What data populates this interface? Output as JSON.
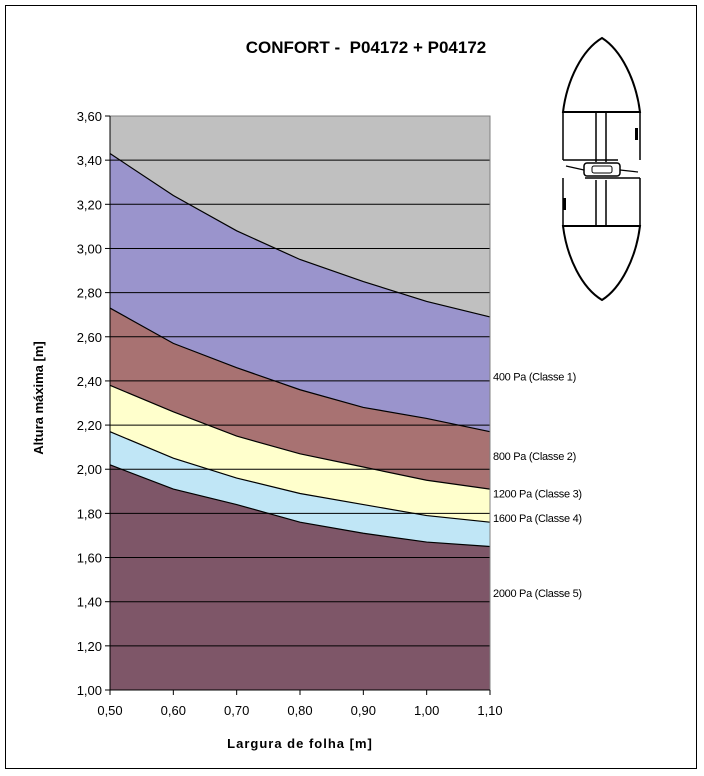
{
  "chart_data": {
    "type": "area",
    "title": "CONFORT -  P04172 + P04172",
    "xlabel": "Largura de folha [m]",
    "ylabel": "Altura máxima [m]",
    "x": [
      0.5,
      0.6,
      0.7,
      0.8,
      0.9,
      1.0,
      1.1
    ],
    "x_tick_labels": [
      "0,50",
      "0,60",
      "0,70",
      "0,80",
      "0,90",
      "1,00",
      "1,10"
    ],
    "y_tick_labels": [
      "1,00",
      "1,20",
      "1,40",
      "1,60",
      "1,80",
      "2,00",
      "2,20",
      "2,40",
      "2,60",
      "2,80",
      "3,00",
      "3,20",
      "3,40",
      "3,60"
    ],
    "xlim": [
      0.5,
      1.1
    ],
    "ylim": [
      1.0,
      3.6
    ],
    "grid": "horizontal",
    "background_color": "#c0c0c0",
    "series": [
      {
        "name": "400 Pa (Classe 1)",
        "color": "#9a94cc",
        "values": [
          3.43,
          3.24,
          3.08,
          2.95,
          2.85,
          2.76,
          2.69
        ]
      },
      {
        "name": "800 Pa (Classe 2)",
        "color": "#a87272",
        "values": [
          2.73,
          2.57,
          2.46,
          2.36,
          2.28,
          2.23,
          2.17
        ]
      },
      {
        "name": "1200 Pa (Classe 3)",
        "color": "#ffffcc",
        "values": [
          2.38,
          2.26,
          2.15,
          2.07,
          2.01,
          1.95,
          1.91
        ]
      },
      {
        "name": "1600 Pa (Classe 4)",
        "color": "#c0e6f6",
        "values": [
          2.17,
          2.05,
          1.96,
          1.89,
          1.84,
          1.79,
          1.76
        ]
      },
      {
        "name": "2000 Pa (Classe 5)",
        "color": "#7e5668",
        "values": [
          2.02,
          1.91,
          1.84,
          1.76,
          1.71,
          1.67,
          1.65
        ]
      }
    ]
  }
}
